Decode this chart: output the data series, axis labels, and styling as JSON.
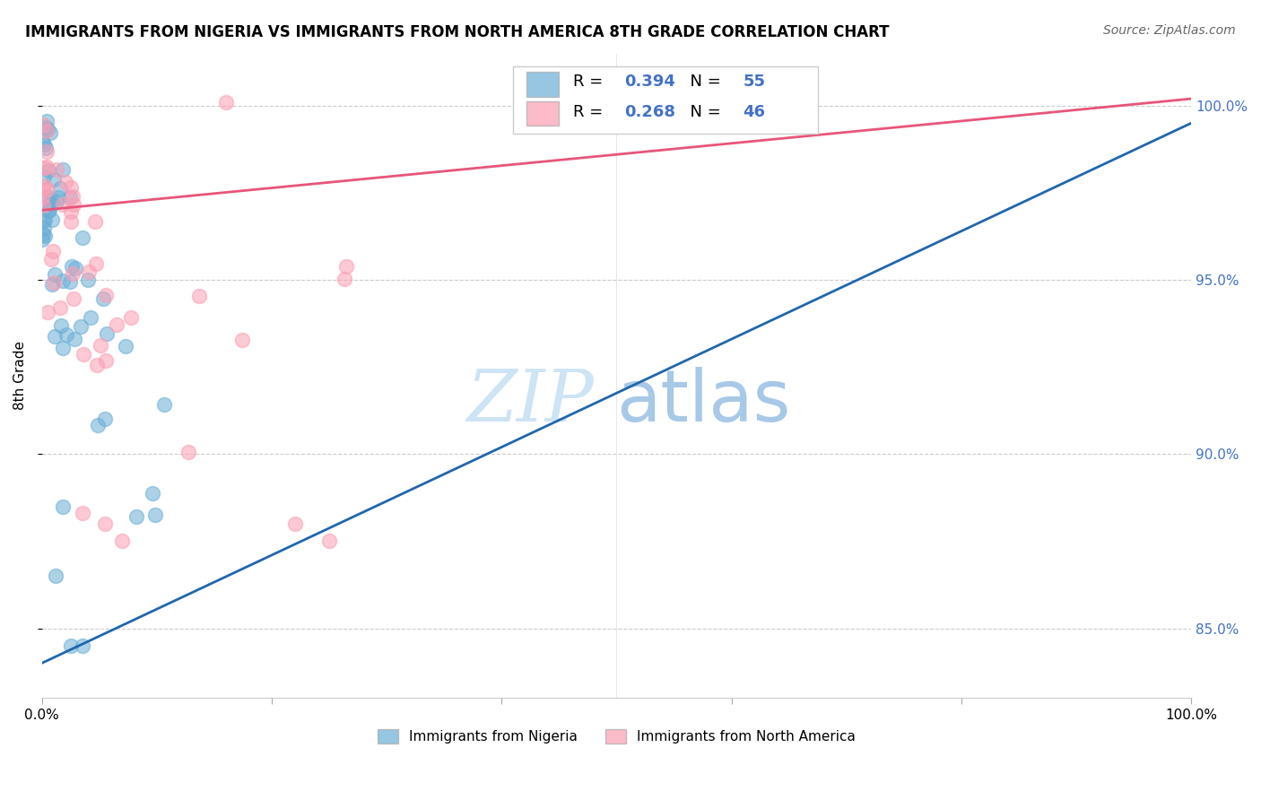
{
  "title": "IMMIGRANTS FROM NIGERIA VS IMMIGRANTS FROM NORTH AMERICA 8TH GRADE CORRELATION CHART",
  "source": "Source: ZipAtlas.com",
  "ylabel": "8th Grade",
  "legend1_label": "Immigrants from Nigeria",
  "legend2_label": "Immigrants from North America",
  "r1": "0.394",
  "n1": "55",
  "r2": "0.268",
  "n2": "46",
  "blue_color": "#6baed6",
  "pink_color": "#fc9eb3",
  "blue_line_color": "#2166ac",
  "pink_line_color": "#e8557a",
  "blue_r_color": "#4472c4",
  "pink_r_color": "#4472c4",
  "xlim": [
    0,
    100
  ],
  "ylim": [
    83,
    101.5
  ],
  "y_ticks": [
    85,
    90,
    95,
    100
  ],
  "y_tick_labels": [
    "85.0%",
    "90.0%",
    "95.0%",
    "100.0%"
  ],
  "background_color": "#ffffff",
  "watermark_zip": "ZIP",
  "watermark_atlas": "atlas",
  "watermark_color": "#cde4f5"
}
